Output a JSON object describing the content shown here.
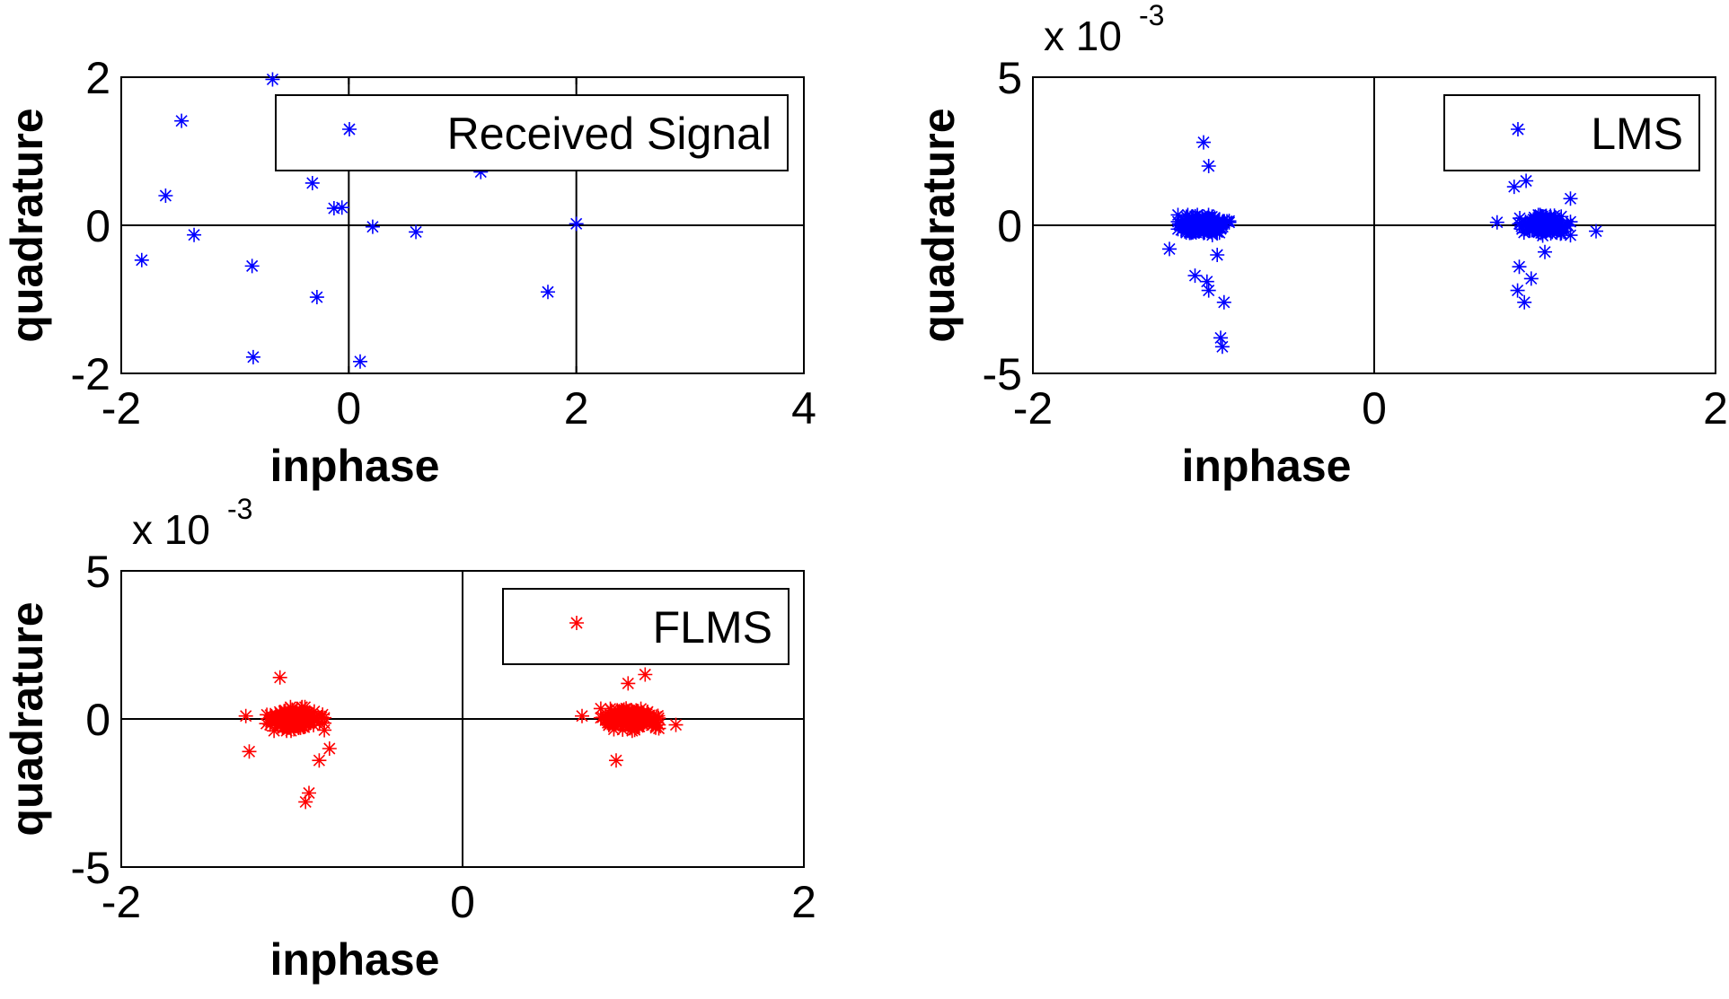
{
  "chart_data": [
    {
      "type": "scatter",
      "title": "",
      "xlabel": "inphase",
      "ylabel": "quadrature",
      "xlim": [
        -2,
        4
      ],
      "ylim": [
        -2,
        2
      ],
      "xticks": [
        -2,
        0,
        2,
        4
      ],
      "yticks": [
        -2,
        0,
        2
      ],
      "xtick_labels": [
        "-2",
        "0",
        "2",
        "4"
      ],
      "ytick_labels": [
        "-2",
        "0",
        "2"
      ],
      "y_exponent_label": "",
      "y_scale": 1,
      "legend": {
        "label": "Received Signal",
        "placement": "top-right"
      },
      "series": [
        {
          "name": "Received Signal",
          "color": "#0000ff",
          "marker": "asterisk",
          "points": [
            [
              -0.67,
              1.97
            ],
            [
              -1.47,
              1.41
            ],
            [
              -1.61,
              0.4
            ],
            [
              -1.36,
              -0.13
            ],
            [
              -1.82,
              -0.47
            ],
            [
              -0.85,
              -0.55
            ],
            [
              -0.84,
              -1.78
            ],
            [
              -0.32,
              0.57
            ],
            [
              -0.28,
              -0.97
            ],
            [
              -0.13,
              0.23
            ],
            [
              -0.06,
              0.24
            ],
            [
              0.0,
              1.27
            ],
            [
              0.21,
              -0.02
            ],
            [
              0.1,
              -1.84
            ],
            [
              0.59,
              -0.09
            ],
            [
              1.16,
              0.72
            ],
            [
              1.75,
              -0.9
            ],
            [
              2.0,
              0.02
            ]
          ]
        }
      ]
    },
    {
      "type": "scatter",
      "title": "",
      "xlabel": "inphase",
      "ylabel": "quadrature",
      "xlim": [
        -2,
        2
      ],
      "ylim": [
        -5,
        5
      ],
      "xticks": [
        -2,
        0,
        2
      ],
      "yticks": [
        -5,
        0,
        5
      ],
      "xtick_labels": [
        "-2",
        "0",
        "2"
      ],
      "ytick_labels": [
        "-5",
        "0",
        "5"
      ],
      "y_exponent_label": "x 10",
      "y_exponent_power": "-3",
      "y_scale": 0.001,
      "legend": {
        "label": "LMS",
        "placement": "top-right"
      },
      "series": [
        {
          "name": "LMS",
          "color": "#0000ff",
          "marker": "asterisk",
          "points": [
            [
              -1.0,
              2.8
            ],
            [
              -0.97,
              2.0
            ],
            [
              -1.05,
              -1.7
            ],
            [
              -0.98,
              -1.9
            ],
            [
              -0.97,
              -2.2
            ],
            [
              -0.88,
              -2.6
            ],
            [
              -0.9,
              -3.8
            ],
            [
              -0.89,
              -4.1
            ],
            [
              -0.92,
              -1.0
            ],
            [
              -1.2,
              -0.8
            ],
            [
              0.82,
              1.3
            ],
            [
              0.89,
              1.5
            ],
            [
              0.85,
              -1.4
            ],
            [
              0.84,
              -2.2
            ],
            [
              0.92,
              -1.8
            ],
            [
              0.88,
              -2.6
            ],
            [
              1.0,
              -0.9
            ],
            [
              1.15,
              0.9
            ],
            [
              0.72,
              0.1
            ],
            [
              1.3,
              -0.2
            ]
          ],
          "clusters": [
            {
              "center": [
                -1.0,
                0.0
              ],
              "spread": [
                0.15,
                0.35
              ],
              "count": 140
            },
            {
              "center": [
                1.0,
                0.0
              ],
              "spread": [
                0.15,
                0.35
              ],
              "count": 140
            }
          ]
        }
      ]
    },
    {
      "type": "scatter",
      "title": "",
      "xlabel": "inphase",
      "ylabel": "quadrature",
      "xlim": [
        -2,
        2
      ],
      "ylim": [
        -5,
        5
      ],
      "xticks": [
        -2,
        0,
        2
      ],
      "yticks": [
        -5,
        0,
        5
      ],
      "xtick_labels": [
        "-2",
        "0",
        "2"
      ],
      "ytick_labels": [
        "-5",
        "0",
        "5"
      ],
      "y_exponent_label": "x 10",
      "y_exponent_power": "-3",
      "y_scale": 0.001,
      "legend": {
        "label": "FLMS",
        "placement": "top-right"
      },
      "series": [
        {
          "name": "FLMS",
          "color": "#ff0000",
          "marker": "asterisk",
          "points": [
            [
              -1.07,
              1.4
            ],
            [
              -1.25,
              -1.1
            ],
            [
              -0.9,
              -2.5
            ],
            [
              -0.92,
              -2.8
            ],
            [
              -0.84,
              -1.4
            ],
            [
              -0.78,
              -1.0
            ],
            [
              -1.27,
              0.1
            ],
            [
              1.07,
              1.5
            ],
            [
              0.9,
              -1.4
            ],
            [
              0.97,
              1.2
            ],
            [
              0.7,
              0.1
            ],
            [
              1.25,
              -0.2
            ]
          ],
          "clusters": [
            {
              "center": [
                -0.98,
                0.0
              ],
              "spread": [
                0.17,
                0.4
              ],
              "count": 170
            },
            {
              "center": [
                0.98,
                0.0
              ],
              "spread": [
                0.17,
                0.4
              ],
              "count": 170
            }
          ]
        }
      ]
    }
  ]
}
